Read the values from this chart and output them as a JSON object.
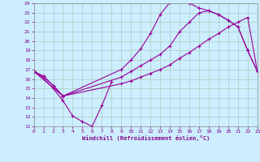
{
  "xlabel": "Windchill (Refroidissement éolien,°C)",
  "bg_color": "#cceeff",
  "line_color": "#990099",
  "grid_color": "#aaccbb",
  "xlim": [
    0,
    23
  ],
  "ylim": [
    11,
    24
  ],
  "xticks": [
    0,
    1,
    2,
    3,
    4,
    5,
    6,
    7,
    8,
    9,
    10,
    11,
    12,
    13,
    14,
    15,
    16,
    17,
    18,
    19,
    20,
    21,
    22,
    23
  ],
  "yticks": [
    11,
    12,
    13,
    14,
    15,
    16,
    17,
    18,
    19,
    20,
    21,
    22,
    23,
    24
  ],
  "line1_x": [
    0,
    1,
    2,
    3,
    4,
    5,
    6,
    7,
    8
  ],
  "line1_y": [
    16.8,
    16.1,
    15.0,
    13.7,
    12.1,
    11.5,
    11.0,
    13.2,
    15.7
  ],
  "line2_x": [
    0,
    1,
    2,
    3,
    9,
    10,
    11,
    12,
    13,
    14,
    15,
    16,
    17,
    18,
    19,
    20,
    21,
    22,
    23
  ],
  "line2_y": [
    16.8,
    16.3,
    15.3,
    14.2,
    17.0,
    18.0,
    19.2,
    20.8,
    22.8,
    24.1,
    24.3,
    24.0,
    23.5,
    23.2,
    22.8,
    22.2,
    21.5,
    19.0,
    16.8
  ],
  "line3_x": [
    0,
    1,
    2,
    3,
    9,
    10,
    11,
    12,
    13,
    14,
    15,
    16,
    17,
    18,
    19,
    20,
    21,
    22,
    23
  ],
  "line3_y": [
    16.8,
    16.3,
    15.3,
    14.2,
    16.2,
    16.8,
    17.4,
    18.0,
    18.6,
    19.5,
    21.0,
    22.0,
    23.0,
    23.2,
    22.8,
    22.2,
    21.5,
    19.0,
    16.8
  ],
  "line4_x": [
    0,
    3,
    9,
    10,
    11,
    12,
    13,
    14,
    15,
    16,
    17,
    18,
    19,
    20,
    21,
    22,
    23
  ],
  "line4_y": [
    16.8,
    14.2,
    15.5,
    15.8,
    16.2,
    16.6,
    17.0,
    17.5,
    18.2,
    18.8,
    19.5,
    20.2,
    20.8,
    21.5,
    22.0,
    22.5,
    16.8
  ]
}
